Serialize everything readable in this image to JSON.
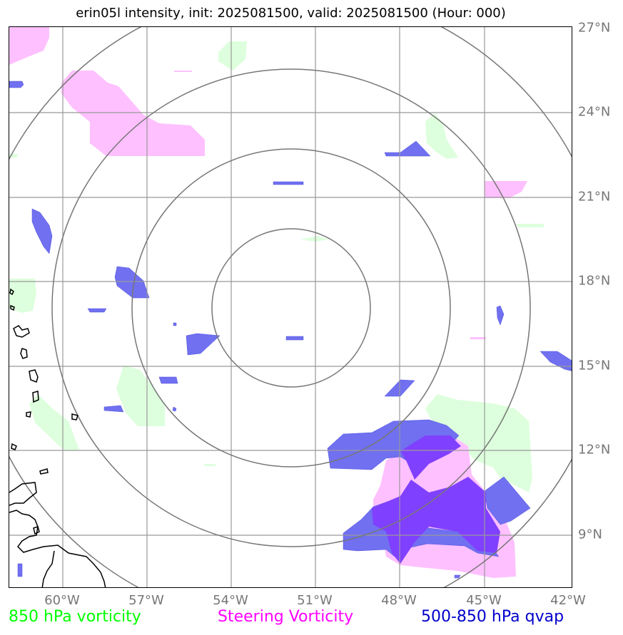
{
  "title": "erin05l intensity, init: 2025081500, valid: 2025081500 (Hour: 000)",
  "map": {
    "lat_labels": [
      "27°N",
      "24°N",
      "21°N",
      "18°N",
      "15°N",
      "12°N",
      "9°N"
    ],
    "lon_labels": [
      "60°W",
      "57°W",
      "54°W",
      "51°W",
      "48°W",
      "45°W",
      "42°W"
    ],
    "range_rings": 4
  },
  "legend": {
    "vorticity_850": {
      "label": "850 hPa vorticity",
      "color": "#00ff00"
    },
    "steering_vorticity": {
      "label": "Steering Vorticity",
      "color": "#ff00ff"
    },
    "qvap": {
      "label": "500-850 hPa qvap",
      "color": "#0000cc"
    }
  },
  "colors": {
    "vort850_fill": "#ddffdd",
    "steering_fill": "#ffc0ff",
    "qvap_fill": "#7070f0",
    "overlap_fill": "#8040ff",
    "grid": "#999999",
    "rings": "#777777",
    "coast": "#000000"
  }
}
